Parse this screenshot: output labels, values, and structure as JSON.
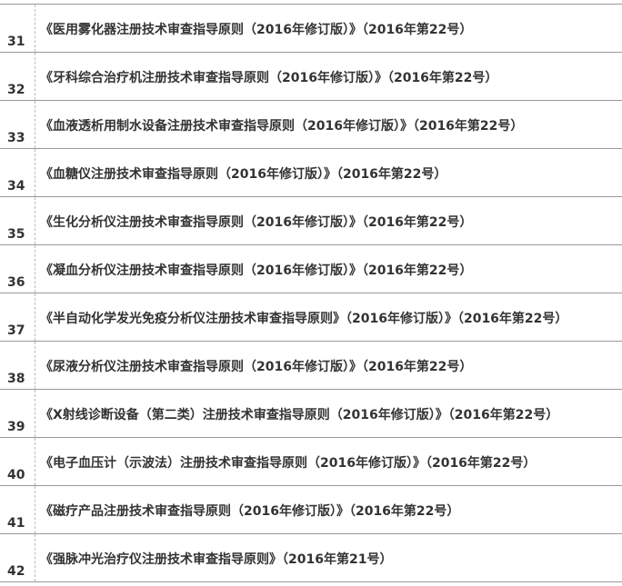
{
  "table": {
    "rows": [
      [
        "31",
        "《医用雾化器注册技术审查指导原则（2016年修订版）》（2016年第22号）"
      ],
      [
        "32",
        "《牙科综合治疗机注册技术审查指导原则（2016年修订版）》（2016年第22号）"
      ],
      [
        "33",
        "《血液透析用制水设备注册技术审查指导原则（2016年修订版）》（2016年第22号）"
      ],
      [
        "34",
        "《血糖仪注册技术审查指导原则（2016年修订版）》（2016年第22号）"
      ],
      [
        "35",
        "《生化分析仪注册技术审查指导原则（2016年修订版）》（2016年第22号）"
      ],
      [
        "36",
        "《凝血分析仪注册技术审查指导原则（2016年修订版）》（2016年第22号）"
      ],
      [
        "37",
        "《半自动化学发光免疫分析仪注册技术审查指导原则》（2016年修订版）》（2016年第22号）"
      ],
      [
        "38",
        "《尿液分析仪注册技术审查指导原则（2016年修订版）》（2016年第22号）"
      ],
      [
        "39",
        "《X射线诊断设备（第二类）注册技术审查指导原则（2016年修订版）》（2016年第22号）"
      ],
      [
        "40",
        "《电子血压计（示波法）注册技术审查指导原则（2016年修订版）》（2016年第22号）"
      ],
      [
        "41",
        "《磁疗产品注册技术审查指导原则（2016年修订版）》（2016年第22号）"
      ],
      [
        "42",
        "《强脉冲光治疗仪注册技术审查指导原则》（2016年第21号）"
      ]
    ]
  }
}
